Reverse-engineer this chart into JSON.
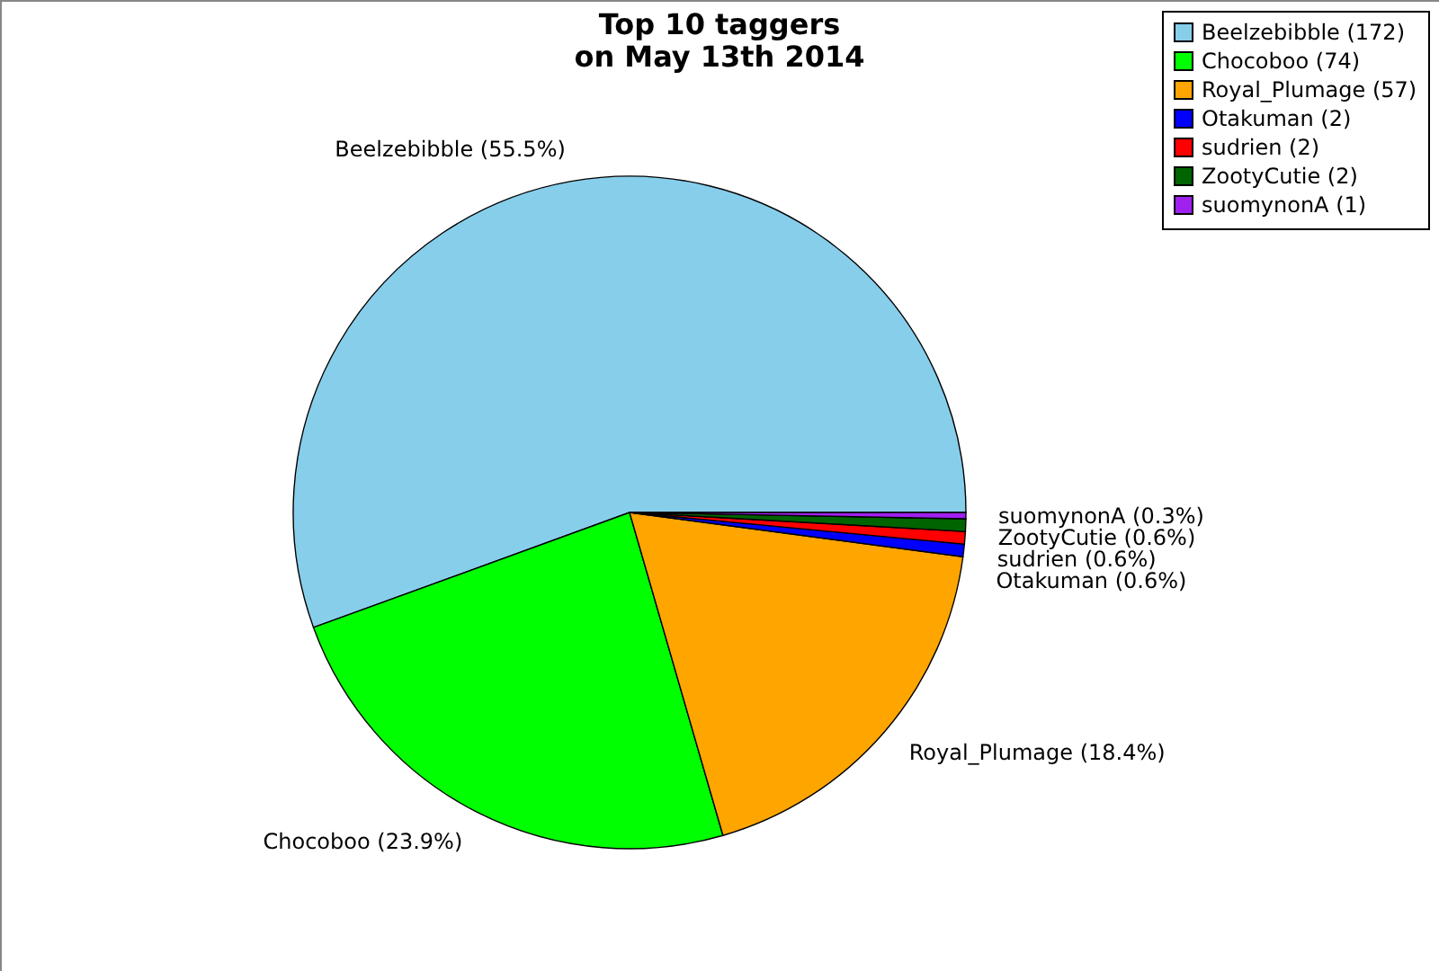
{
  "chart_data": {
    "type": "pie",
    "title": "Top 10 taggers\non May 13th 2014",
    "categories": [
      "Beelzebibble (172)",
      "Chocoboo (74)",
      "Royal_Plumage (57)",
      "Otakuman (2)",
      "sudrien (2)",
      "ZootyCutie (2)",
      "suomynonA (1)"
    ],
    "values": [
      55.5,
      23.9,
      18.4,
      0.6,
      0.6,
      0.6,
      0.3
    ],
    "colors": [
      "#87ceeb",
      "#00ff00",
      "#ffa500",
      "#0000ff",
      "#ff0000",
      "#006400",
      "#a020f0"
    ],
    "value_labels": [
      "Beelzebibble (55.5%)",
      "Chocoboo (23.9%)",
      "Royal_Plumage (18.4%)",
      "Otakuman (0.6%)",
      "sudrien (0.6%)",
      "ZootyCutie (0.6%)",
      "suomynonA (0.3%)"
    ],
    "legend": "top right"
  }
}
